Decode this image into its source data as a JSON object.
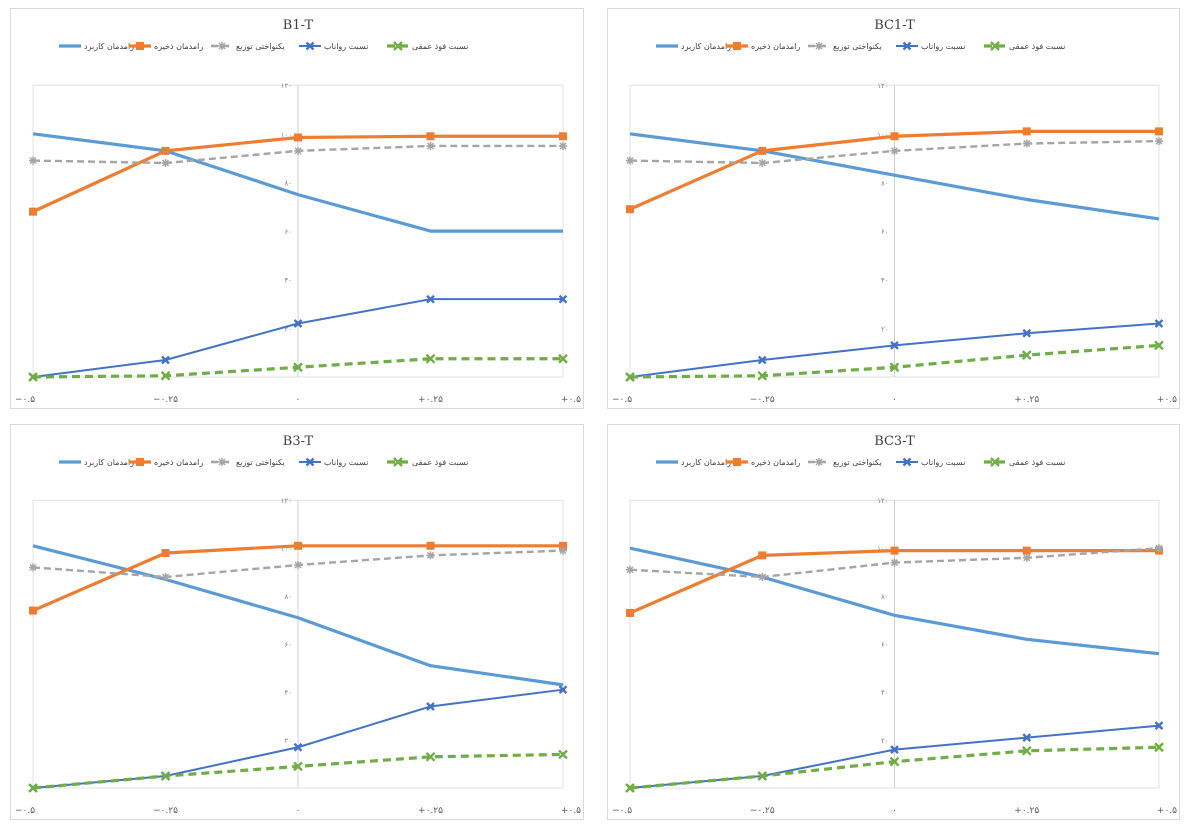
{
  "colors": {
    "blue": "#5b9bd5",
    "orange": "#ed7d31",
    "gray": "#a5a5a5",
    "darkblue": "#4472c4",
    "green": "#70ad47"
  },
  "legend": [
    "رامدمان کاربرد",
    "رامدمان ذخیره",
    "یکنواختی توزیع",
    "نسبت رواناب",
    "نسبت فوذ عمقی"
  ],
  "chart_data": [
    {
      "type": "line",
      "title": "B1-T",
      "categories": [
        "−۰.۵",
        "−۰.۲۵",
        "۰",
        "+۰.۲۵",
        "+۰.۵"
      ],
      "y_ticks": [
        "۱۲۰",
        "۱۰۰",
        "۸۰",
        "۶۰",
        "۴۰",
        "۲۰"
      ],
      "ylim": [
        0,
        120
      ],
      "series": [
        {
          "name": "رامدمان کاربرد",
          "values": [
            100,
            93,
            75,
            60,
            60
          ]
        },
        {
          "name": "رامدمان ذخیره",
          "values": [
            68,
            93,
            98.5,
            99,
            99
          ]
        },
        {
          "name": "یکنواختی توزیع",
          "values": [
            89,
            88,
            93,
            95,
            95
          ]
        },
        {
          "name": "نسبت رواناب",
          "values": [
            0,
            7,
            22,
            32,
            32
          ]
        },
        {
          "name": "نسبت فوذ عمقی",
          "values": [
            0,
            0.5,
            4,
            7.5,
            7.5
          ]
        }
      ]
    },
    {
      "type": "line",
      "title": "BC1-T",
      "categories": [
        "−۰.۵",
        "−۰.۲۵",
        "۰",
        "+۰.۲۵",
        "+۰.۵"
      ],
      "y_ticks": [
        "۱۲۰",
        "۱۰۰",
        "۸۰",
        "۶۰",
        "۴۰",
        "۲۰"
      ],
      "ylim": [
        0,
        120
      ],
      "series": [
        {
          "name": "رامدمان کاربرد",
          "values": [
            100,
            93,
            83,
            73,
            65
          ]
        },
        {
          "name": "رامدمان ذخیره",
          "values": [
            69,
            93,
            99,
            101,
            101
          ]
        },
        {
          "name": "یکنواختی توزیع",
          "values": [
            89,
            88,
            93,
            96,
            97
          ]
        },
        {
          "name": "نسبت رواناب",
          "values": [
            0,
            7,
            13,
            18,
            22
          ]
        },
        {
          "name": "نسبت فوذ عمقی",
          "values": [
            0,
            0.5,
            4,
            9,
            13
          ]
        }
      ]
    },
    {
      "type": "line",
      "title": "B3-T",
      "categories": [
        "−۰.۵",
        "−۰.۲۵",
        "۰",
        "+۰.۲۵",
        "+۰.۵"
      ],
      "y_ticks": [
        "۱۲۰",
        "۱۰۰",
        "۸۰",
        "۶۰",
        "۴۰",
        "۲۰"
      ],
      "ylim": [
        0,
        120
      ],
      "series": [
        {
          "name": "رامدمان کاربرد",
          "values": [
            101,
            87,
            71,
            51,
            43
          ]
        },
        {
          "name": "رامدمان ذخیره",
          "values": [
            74,
            98,
            101,
            101,
            101
          ]
        },
        {
          "name": "یکنواختی توزیع",
          "values": [
            92,
            88,
            93,
            97,
            99
          ]
        },
        {
          "name": "نسبت رواناب",
          "values": [
            0,
            5,
            17,
            34,
            41
          ]
        },
        {
          "name": "نسبت فوذ عمقی",
          "values": [
            0,
            5,
            9,
            13,
            14
          ]
        }
      ]
    },
    {
      "type": "line",
      "title": "BC3-T",
      "categories": [
        "−۰.۵",
        "−۰.۲۵",
        "۰",
        "+۰.۲۵",
        "+۰.۵"
      ],
      "y_ticks": [
        "۱۲۰",
        "۱۰۰",
        "۸۰",
        "۶۰",
        "۴۰",
        "۲۰"
      ],
      "ylim": [
        0,
        120
      ],
      "series": [
        {
          "name": "رامدمان کاربرد",
          "values": [
            100,
            88,
            72,
            62,
            56
          ]
        },
        {
          "name": "رامدمان ذخیره",
          "values": [
            73,
            97,
            99,
            99,
            99
          ]
        },
        {
          "name": "یکنواختی توزیع",
          "values": [
            91,
            88,
            94,
            96,
            100
          ]
        },
        {
          "name": "نسبت رواناب",
          "values": [
            0,
            5,
            16,
            21,
            26
          ]
        },
        {
          "name": "نسبت فوذ عمقی",
          "values": [
            0,
            5,
            11,
            15.5,
            17
          ]
        }
      ]
    }
  ]
}
